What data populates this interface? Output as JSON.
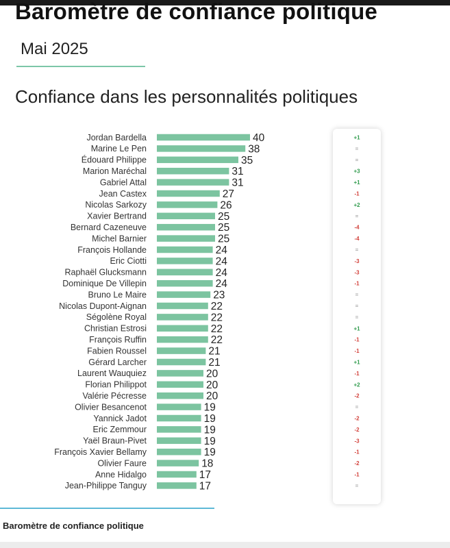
{
  "header": {
    "title": "Baromètre de confiance politique",
    "subtitle": "Mai 2025"
  },
  "footer": {
    "text": "Baromètre de confiance politique"
  },
  "colors": {
    "bar": "#7cc4a0",
    "positive": "#2e9a4b",
    "negative": "#d2403a",
    "neutral": "#aaaaaa"
  },
  "chart_data": {
    "type": "bar",
    "orientation": "horizontal",
    "title": "Confiance dans les personnalités politiques",
    "xlabel": "",
    "ylabel": "",
    "grid": false,
    "legend": "none",
    "xlim": [
      0,
      40
    ],
    "categories": [
      "Jordan Bardella",
      "Marine Le Pen",
      "Édouard Philippe",
      "Marion Maréchal",
      "Gabriel Attal",
      "Jean Castex",
      "Nicolas Sarkozy",
      "Xavier Bertrand",
      "Bernard Cazeneuve",
      "Michel Barnier",
      "François Hollande",
      "Eric Ciotti",
      "Raphaël Glucksmann",
      "Dominique De Villepin",
      "Bruno Le Maire",
      "Nicolas Dupont-Aignan",
      "Ségolène Royal",
      "Christian Estrosi",
      "François Ruffin",
      "Fabien Roussel",
      "Gérard Larcher",
      "Laurent Wauquiez",
      "Florian Philippot",
      "Valérie Pécresse",
      "Olivier Besancenot",
      "Yannick Jadot",
      "Eric Zemmour",
      "Yaël Braun-Pivet",
      "François Xavier Bellamy",
      "Olivier Faure",
      "Anne Hidalgo",
      "Jean-Philippe Tanguy"
    ],
    "values": [
      40,
      38,
      35,
      31,
      31,
      27,
      26,
      25,
      25,
      25,
      24,
      24,
      24,
      24,
      23,
      22,
      22,
      22,
      22,
      21,
      21,
      20,
      20,
      20,
      19,
      19,
      19,
      19,
      19,
      18,
      17,
      17
    ],
    "variations": [
      "+1",
      "=",
      "=",
      "+3",
      "+1",
      "-1",
      "+2",
      "=",
      "-4",
      "-4",
      "=",
      "-3",
      "-3",
      "-1",
      "=",
      "=",
      "=",
      "+1",
      "-1",
      "-1",
      "+1",
      "-1",
      "+2",
      "-2",
      "=",
      "-2",
      "-2",
      "-3",
      "-1",
      "-2",
      "-1",
      "="
    ]
  }
}
